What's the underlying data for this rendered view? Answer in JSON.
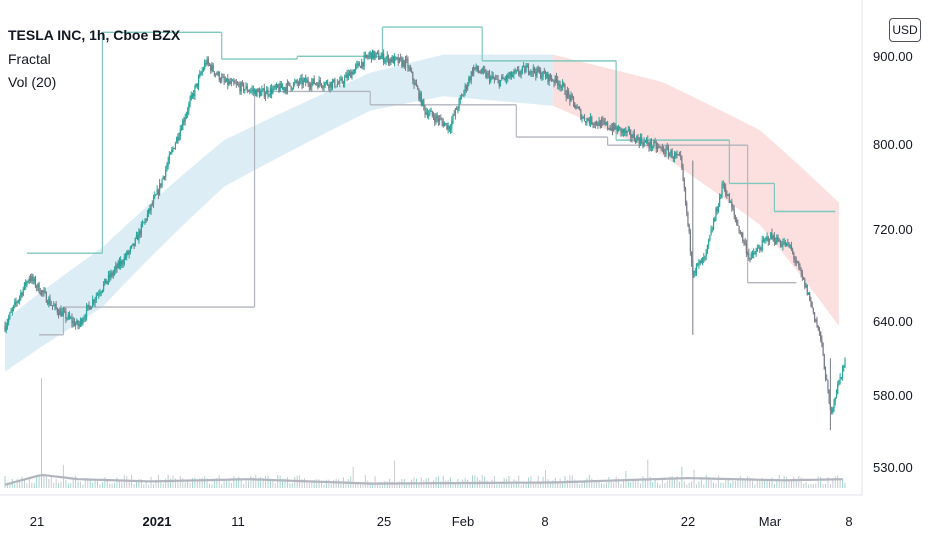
{
  "legend": {
    "title": "TESLA INC, 1h, Cboe BZX",
    "indicator1": "Fractal",
    "indicator2": "Vol (20)"
  },
  "currency_button": "USD",
  "colors": {
    "up": "#26a69a",
    "down": "#787b86",
    "band_up": "#d6eaf5",
    "band_down": "#fbd9d9",
    "volume_ma": "#b2b5be",
    "axis_text": "#131722"
  },
  "chart_data": {
    "type": "candlestick",
    "title": "TESLA INC, 1h, Cboe BZX",
    "y_ticks": [
      530,
      580,
      640,
      720,
      800,
      900
    ],
    "y_tick_labels": [
      "530.00",
      "580.00",
      "640.00",
      "720.00",
      "800.00",
      "900.00"
    ],
    "ylim": [
      505,
      925
    ],
    "x_tick_labels": [
      "21",
      "2021",
      "11",
      "25",
      "Feb",
      "8",
      "22",
      "Mar",
      "8"
    ],
    "x_tick_bold": [
      false,
      true,
      false,
      false,
      false,
      false,
      false,
      false,
      false
    ],
    "price_path_keypoints": [
      {
        "i": 0,
        "p": 625
      },
      {
        "i": 20,
        "p": 665
      },
      {
        "i": 40,
        "p": 640
      },
      {
        "i": 60,
        "p": 625
      },
      {
        "i": 75,
        "p": 650
      },
      {
        "i": 105,
        "p": 690
      },
      {
        "i": 125,
        "p": 738
      },
      {
        "i": 145,
        "p": 805
      },
      {
        "i": 165,
        "p": 872
      },
      {
        "i": 180,
        "p": 850
      },
      {
        "i": 210,
        "p": 838
      },
      {
        "i": 245,
        "p": 850
      },
      {
        "i": 275,
        "p": 848
      },
      {
        "i": 300,
        "p": 880
      },
      {
        "i": 330,
        "p": 870
      },
      {
        "i": 345,
        "p": 820
      },
      {
        "i": 365,
        "p": 803
      },
      {
        "i": 385,
        "p": 865
      },
      {
        "i": 405,
        "p": 850
      },
      {
        "i": 430,
        "p": 865
      },
      {
        "i": 455,
        "p": 850
      },
      {
        "i": 475,
        "p": 812
      },
      {
        "i": 505,
        "p": 800
      },
      {
        "i": 525,
        "p": 788
      },
      {
        "i": 545,
        "p": 778
      },
      {
        "i": 555,
        "p": 770
      },
      {
        "i": 565,
        "p": 670
      },
      {
        "i": 575,
        "p": 680
      },
      {
        "i": 590,
        "p": 748
      },
      {
        "i": 600,
        "p": 715
      },
      {
        "i": 612,
        "p": 680
      },
      {
        "i": 628,
        "p": 700
      },
      {
        "i": 645,
        "p": 690
      },
      {
        "i": 660,
        "p": 650
      },
      {
        "i": 670,
        "p": 615
      },
      {
        "i": 678,
        "p": 560
      },
      {
        "i": 690,
        "p": 598
      }
    ],
    "upper_fractal_levels": [
      {
        "i0": 18,
        "i1": 80,
        "p": 685
      },
      {
        "i0": 80,
        "i1": 178,
        "p": 905
      },
      {
        "i0": 178,
        "i1": 240,
        "p": 875
      },
      {
        "i0": 240,
        "i1": 310,
        "p": 878
      },
      {
        "i0": 310,
        "i1": 392,
        "p": 911
      },
      {
        "i0": 392,
        "i1": 502,
        "p": 873
      },
      {
        "i0": 502,
        "i1": 595,
        "p": 790
      },
      {
        "i0": 595,
        "i1": 632,
        "p": 748
      },
      {
        "i0": 632,
        "i1": 682,
        "p": 722
      }
    ],
    "lower_fractal_levels": [
      {
        "i0": 28,
        "i1": 48,
        "p": 618
      },
      {
        "i0": 48,
        "i1": 205,
        "p": 640
      },
      {
        "i0": 205,
        "i1": 300,
        "p": 840
      },
      {
        "i0": 300,
        "i1": 420,
        "p": 826
      },
      {
        "i0": 420,
        "i1": 495,
        "p": 793
      },
      {
        "i0": 495,
        "i1": 610,
        "p": 785
      },
      {
        "i0": 610,
        "i1": 650,
        "p": 660
      }
    ],
    "band_upper": [
      {
        "i": 0,
        "p": 630
      },
      {
        "i": 80,
        "p": 690
      },
      {
        "i": 180,
        "p": 790
      },
      {
        "i": 300,
        "p": 860
      },
      {
        "i": 360,
        "p": 880
      },
      {
        "i": 450,
        "p": 880
      },
      {
        "i": 540,
        "p": 850
      },
      {
        "i": 620,
        "p": 800
      },
      {
        "i": 685,
        "p": 730
      }
    ],
    "band_lower": [
      {
        "i": 0,
        "p": 590
      },
      {
        "i": 80,
        "p": 640
      },
      {
        "i": 180,
        "p": 745
      },
      {
        "i": 300,
        "p": 820
      },
      {
        "i": 360,
        "p": 835
      },
      {
        "i": 450,
        "p": 825
      },
      {
        "i": 540,
        "p": 775
      },
      {
        "i": 620,
        "p": 710
      },
      {
        "i": 685,
        "p": 625
      }
    ],
    "band_switch_index": 450,
    "volume": {
      "spike_index": 30,
      "spike_value": 10,
      "baseline": 1,
      "ma_keypoints": [
        {
          "i": 0,
          "v": 0.3
        },
        {
          "i": 30,
          "v": 1.2
        },
        {
          "i": 60,
          "v": 0.8
        },
        {
          "i": 120,
          "v": 0.6
        },
        {
          "i": 200,
          "v": 0.8
        },
        {
          "i": 300,
          "v": 0.4
        },
        {
          "i": 450,
          "v": 0.5
        },
        {
          "i": 560,
          "v": 0.9
        },
        {
          "i": 640,
          "v": 0.7
        },
        {
          "i": 690,
          "v": 0.8
        }
      ]
    }
  }
}
